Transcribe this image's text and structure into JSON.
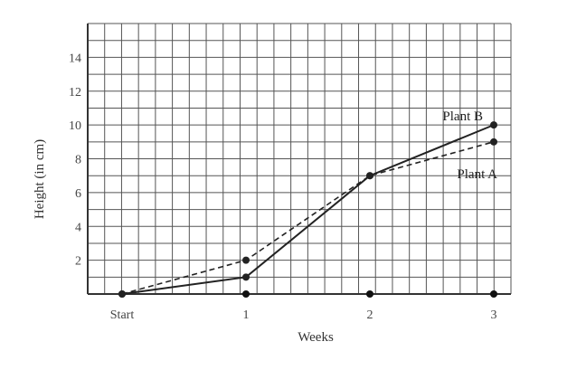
{
  "chart_data": {
    "type": "line",
    "xlabel": "Weeks",
    "ylabel": "Height (in cm)",
    "x": [
      0,
      1,
      2,
      3
    ],
    "x_tick_labels": [
      "Start",
      "1",
      "2",
      "3"
    ],
    "y_ticks": [
      2,
      4,
      6,
      8,
      10,
      12,
      14
    ],
    "ylim": [
      0,
      16
    ],
    "xlim": [
      -0.3,
      3.2
    ],
    "grid": true,
    "series": [
      {
        "name": "Plant B",
        "values": [
          0,
          1,
          7,
          10
        ],
        "style": "solid",
        "color": "#222222"
      },
      {
        "name": "Plant A",
        "values": [
          0,
          2,
          7,
          9
        ],
        "style": "dashed",
        "color": "#222222"
      }
    ]
  }
}
